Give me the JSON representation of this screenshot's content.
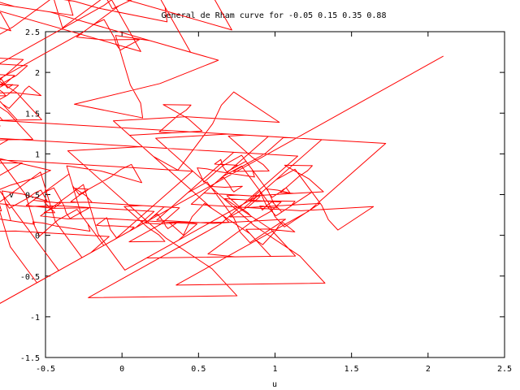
{
  "chart_data": {
    "type": "line",
    "title": "General de Rham curve for -0.05 0.15 0.35 0.88",
    "xlabel": "u",
    "ylabel": "v",
    "xlim": [
      -0.5,
      2.5
    ],
    "ylim": [
      -1.5,
      2.5
    ],
    "xticks": [
      "-0.5",
      "0",
      "0.5",
      "1",
      "1.5",
      "2",
      "2.5"
    ],
    "yticks": [
      "-1.5",
      "-1",
      "-0.5",
      "0",
      "0.5",
      "1",
      "1.5",
      "2",
      "2.5"
    ],
    "xtick_values": [
      -0.5,
      0,
      0.5,
      1,
      1.5,
      2,
      2.5
    ],
    "ytick_values": [
      -1.5,
      -1,
      -0.5,
      0,
      0.5,
      1,
      1.5,
      2,
      2.5
    ],
    "grid": false,
    "legend": "none",
    "line_color": "#ff0000",
    "curve_parameters": {
      "a_re": -0.05,
      "a_im": 0.15,
      "d_re": 0.35,
      "d_im": 0.88,
      "recursion_depth": 11,
      "start_point": [
        0,
        0
      ],
      "end_point": [
        1,
        0
      ]
    }
  }
}
